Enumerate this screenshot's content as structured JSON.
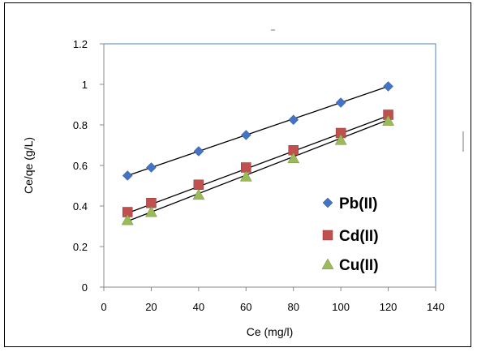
{
  "chart_data": {
    "type": "scatter",
    "title": "",
    "xlabel": "Ce (mg/l)",
    "ylabel": "Ce/qe (g/L)",
    "xlim": [
      0,
      140
    ],
    "ylim": [
      0,
      1.2
    ],
    "x_ticks": [
      "0",
      "20",
      "40",
      "60",
      "80",
      "100",
      "120",
      "140"
    ],
    "y_ticks": [
      "0",
      "0.2",
      "0.4",
      "0.6",
      "0.8",
      "1",
      "1.2"
    ],
    "grid": false,
    "legend_position": "right",
    "series": [
      {
        "name": "Pb(II)",
        "marker": "diamond",
        "color": "#4472C4",
        "x": [
          10,
          20,
          40,
          60,
          80,
          100,
          120
        ],
        "y": [
          0.55,
          0.59,
          0.67,
          0.75,
          0.825,
          0.91,
          0.99
        ],
        "trendline": {
          "x": [
            10,
            120
          ],
          "y": [
            0.55,
            0.99
          ]
        }
      },
      {
        "name": "Cd(II)",
        "marker": "square",
        "color": "#C0504D",
        "x": [
          10,
          20,
          40,
          60,
          80,
          100,
          120
        ],
        "y": [
          0.37,
          0.415,
          0.505,
          0.59,
          0.675,
          0.76,
          0.85
        ],
        "trendline": {
          "x": [
            10,
            120
          ],
          "y": [
            0.365,
            0.845
          ]
        }
      },
      {
        "name": "Cu(II)",
        "marker": "triangle",
        "color": "#9BBB59",
        "x": [
          10,
          20,
          40,
          60,
          80,
          100,
          120
        ],
        "y": [
          0.33,
          0.37,
          0.455,
          0.545,
          0.635,
          0.725,
          0.82
        ],
        "trendline": {
          "x": [
            10,
            120
          ],
          "y": [
            0.325,
            0.825
          ]
        }
      }
    ]
  }
}
